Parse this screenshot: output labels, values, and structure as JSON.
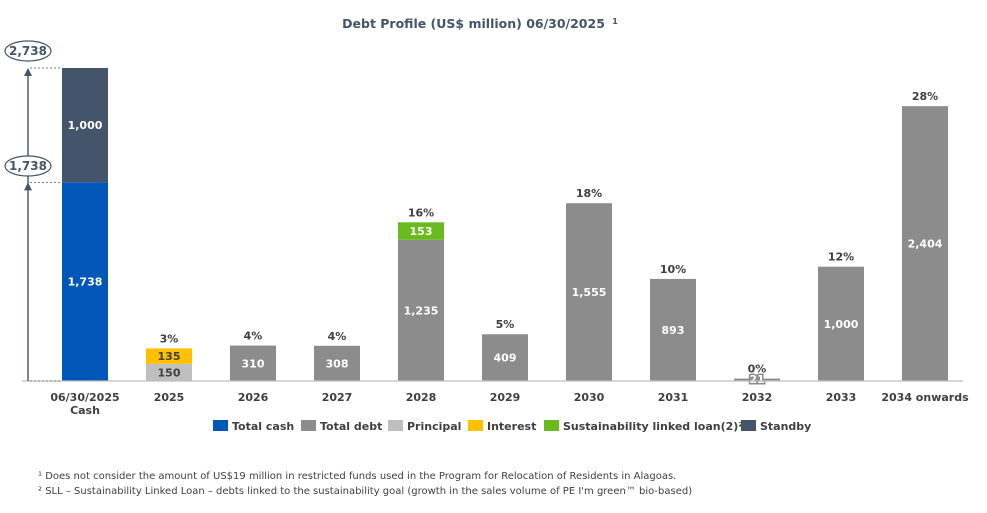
{
  "chart_data": {
    "type": "bar",
    "title": "Debt Profile (US$ million) 06/30/2025",
    "title_note": "1",
    "categories": [
      {
        "line1": "06/30/2025",
        "line2": "Cash"
      },
      {
        "line1": "2025"
      },
      {
        "line1": "2026"
      },
      {
        "line1": "2027"
      },
      {
        "line1": "2028"
      },
      {
        "line1": "2029"
      },
      {
        "line1": "2030"
      },
      {
        "line1": "2031"
      },
      {
        "line1": "2032"
      },
      {
        "line1": "2033"
      },
      {
        "line1": "2034 onwards"
      }
    ],
    "ylim": [
      0,
      2738
    ],
    "stacks": [
      [
        {
          "series": "total_cash",
          "value": 1738,
          "label": "1,738"
        },
        {
          "series": "standby",
          "value": 1000,
          "label": "1,000"
        }
      ],
      [
        {
          "series": "principal",
          "value": 150,
          "label": "150"
        },
        {
          "series": "interest",
          "value": 135,
          "label": "135"
        }
      ],
      [
        {
          "series": "total_debt",
          "value": 310,
          "label": "310"
        }
      ],
      [
        {
          "series": "total_debt",
          "value": 308,
          "label": "308"
        }
      ],
      [
        {
          "series": "total_debt",
          "value": 1235,
          "label": "1,235"
        },
        {
          "series": "sll",
          "value": 153,
          "label": "153"
        }
      ],
      [
        {
          "series": "total_debt",
          "value": 409,
          "label": "409"
        }
      ],
      [
        {
          "series": "total_debt",
          "value": 1555,
          "label": "1,555"
        }
      ],
      [
        {
          "series": "total_debt",
          "value": 893,
          "label": "893"
        }
      ],
      [
        {
          "series": "total_debt",
          "value": 21,
          "label": "21"
        }
      ],
      [
        {
          "series": "total_debt",
          "value": 1000,
          "label": "1,000"
        }
      ],
      [
        {
          "series": "total_debt",
          "value": 2404,
          "label": "2,404"
        }
      ]
    ],
    "percentages": [
      "",
      "3%",
      "4%",
      "4%",
      "16%",
      "5%",
      "18%",
      "10%",
      "0%",
      "12%",
      "28%"
    ],
    "callouts": [
      {
        "label": "2,738",
        "value": 2738
      },
      {
        "label": "1,738",
        "value": 1738
      }
    ],
    "legend": [
      {
        "key": "total_cash",
        "label": "Total cash"
      },
      {
        "key": "total_debt",
        "label": "Total debt"
      },
      {
        "key": "principal",
        "label": "Principal"
      },
      {
        "key": "interest",
        "label": "Interest"
      },
      {
        "key": "sll",
        "label": "Sustainability linked loan(2)²"
      },
      {
        "key": "standby",
        "label": "Standby"
      }
    ],
    "colors": {
      "total_cash": "#0057b8",
      "total_debt": "#8c8c8c",
      "principal": "#bfbfbf",
      "interest": "#ffc000",
      "sll": "#6aba1f",
      "standby": "#44546a"
    },
    "label_colors": {
      "total_cash": "#ffffff",
      "total_debt": "#ffffff",
      "principal": "#404040",
      "interest": "#404040",
      "sll": "#ffffff",
      "standby": "#ffffff"
    }
  },
  "footnotes": {
    "note1": "¹ Does not consider the amount of US$19 million in restricted funds used in the Program for Relocation of Residents in Alagoas.",
    "note2": "² SLL – Sustainability Linked Loan – debts linked to the sustainability goal (growth in the sales volume of PE I'm green™ bio-based)"
  }
}
